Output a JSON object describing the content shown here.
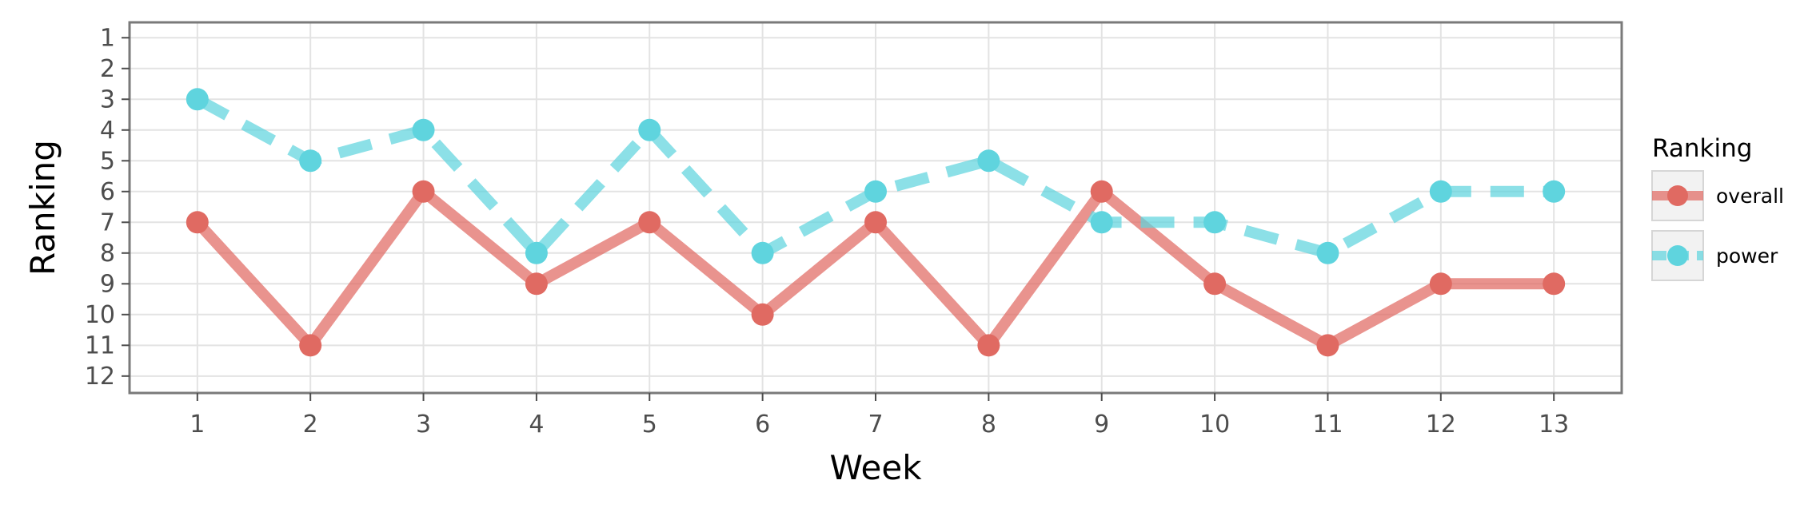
{
  "chart_data": {
    "type": "line",
    "title": "",
    "xlabel": "Week",
    "ylabel": "Ranking",
    "x": [
      1,
      2,
      3,
      4,
      5,
      6,
      7,
      8,
      9,
      10,
      11,
      12,
      13
    ],
    "xlim": [
      0.4,
      13.6
    ],
    "ylim": [
      12.55,
      0.5
    ],
    "y_reversed": true,
    "x_ticks": [
      "1",
      "2",
      "3",
      "4",
      "5",
      "6",
      "7",
      "8",
      "9",
      "10",
      "11",
      "12",
      "13"
    ],
    "y_ticks": [
      "1",
      "2",
      "3",
      "4",
      "5",
      "6",
      "7",
      "8",
      "9",
      "10",
      "11",
      "12"
    ],
    "grid": true,
    "legend": {
      "title": "Ranking",
      "placement": "right"
    },
    "series": [
      {
        "name": "overall",
        "line_style": "solid",
        "color": "#e06a62",
        "values": [
          7,
          11,
          6,
          9,
          7,
          10,
          7,
          11,
          6,
          9,
          11,
          9,
          9
        ]
      },
      {
        "name": "power",
        "line_style": "dashed",
        "color": "#5fd4de",
        "values": [
          3,
          5,
          4,
          8,
          4,
          8,
          6,
          5,
          7,
          7,
          8,
          6,
          6
        ]
      }
    ]
  }
}
